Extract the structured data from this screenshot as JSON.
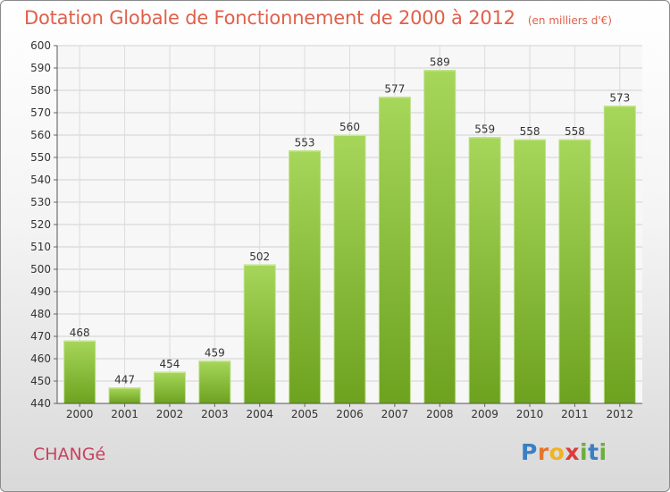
{
  "title": "Dotation Globale de Fonctionnement de 2000 à 2012",
  "unit_note": "(en milliers d'€)",
  "commune": "CHANGé",
  "logo": {
    "letters": [
      "P",
      "r",
      "o",
      "x",
      "i",
      "t",
      "i"
    ],
    "colors": [
      "#3a7fc4",
      "#e8742c",
      "#f0b323",
      "#e03a3a",
      "#6cae3e",
      "#3a7fc4",
      "#6cae3e"
    ]
  },
  "colors": {
    "title": "#e0604a",
    "commune": "#c9415e",
    "bar_light": "#a6d65a",
    "bar_dark": "#6da21f"
  },
  "chart_data": {
    "type": "bar",
    "categories": [
      "2000",
      "2001",
      "2002",
      "2003",
      "2004",
      "2005",
      "2006",
      "2007",
      "2008",
      "2009",
      "2010",
      "2011",
      "2012"
    ],
    "values": [
      468,
      447,
      454,
      459,
      502,
      553,
      560,
      577,
      589,
      559,
      558,
      558,
      573
    ],
    "ylim": [
      440,
      600
    ],
    "yticks": [
      440,
      450,
      460,
      470,
      480,
      490,
      500,
      510,
      520,
      530,
      540,
      550,
      560,
      570,
      580,
      590,
      600
    ],
    "grid": true,
    "data_labels": true
  }
}
